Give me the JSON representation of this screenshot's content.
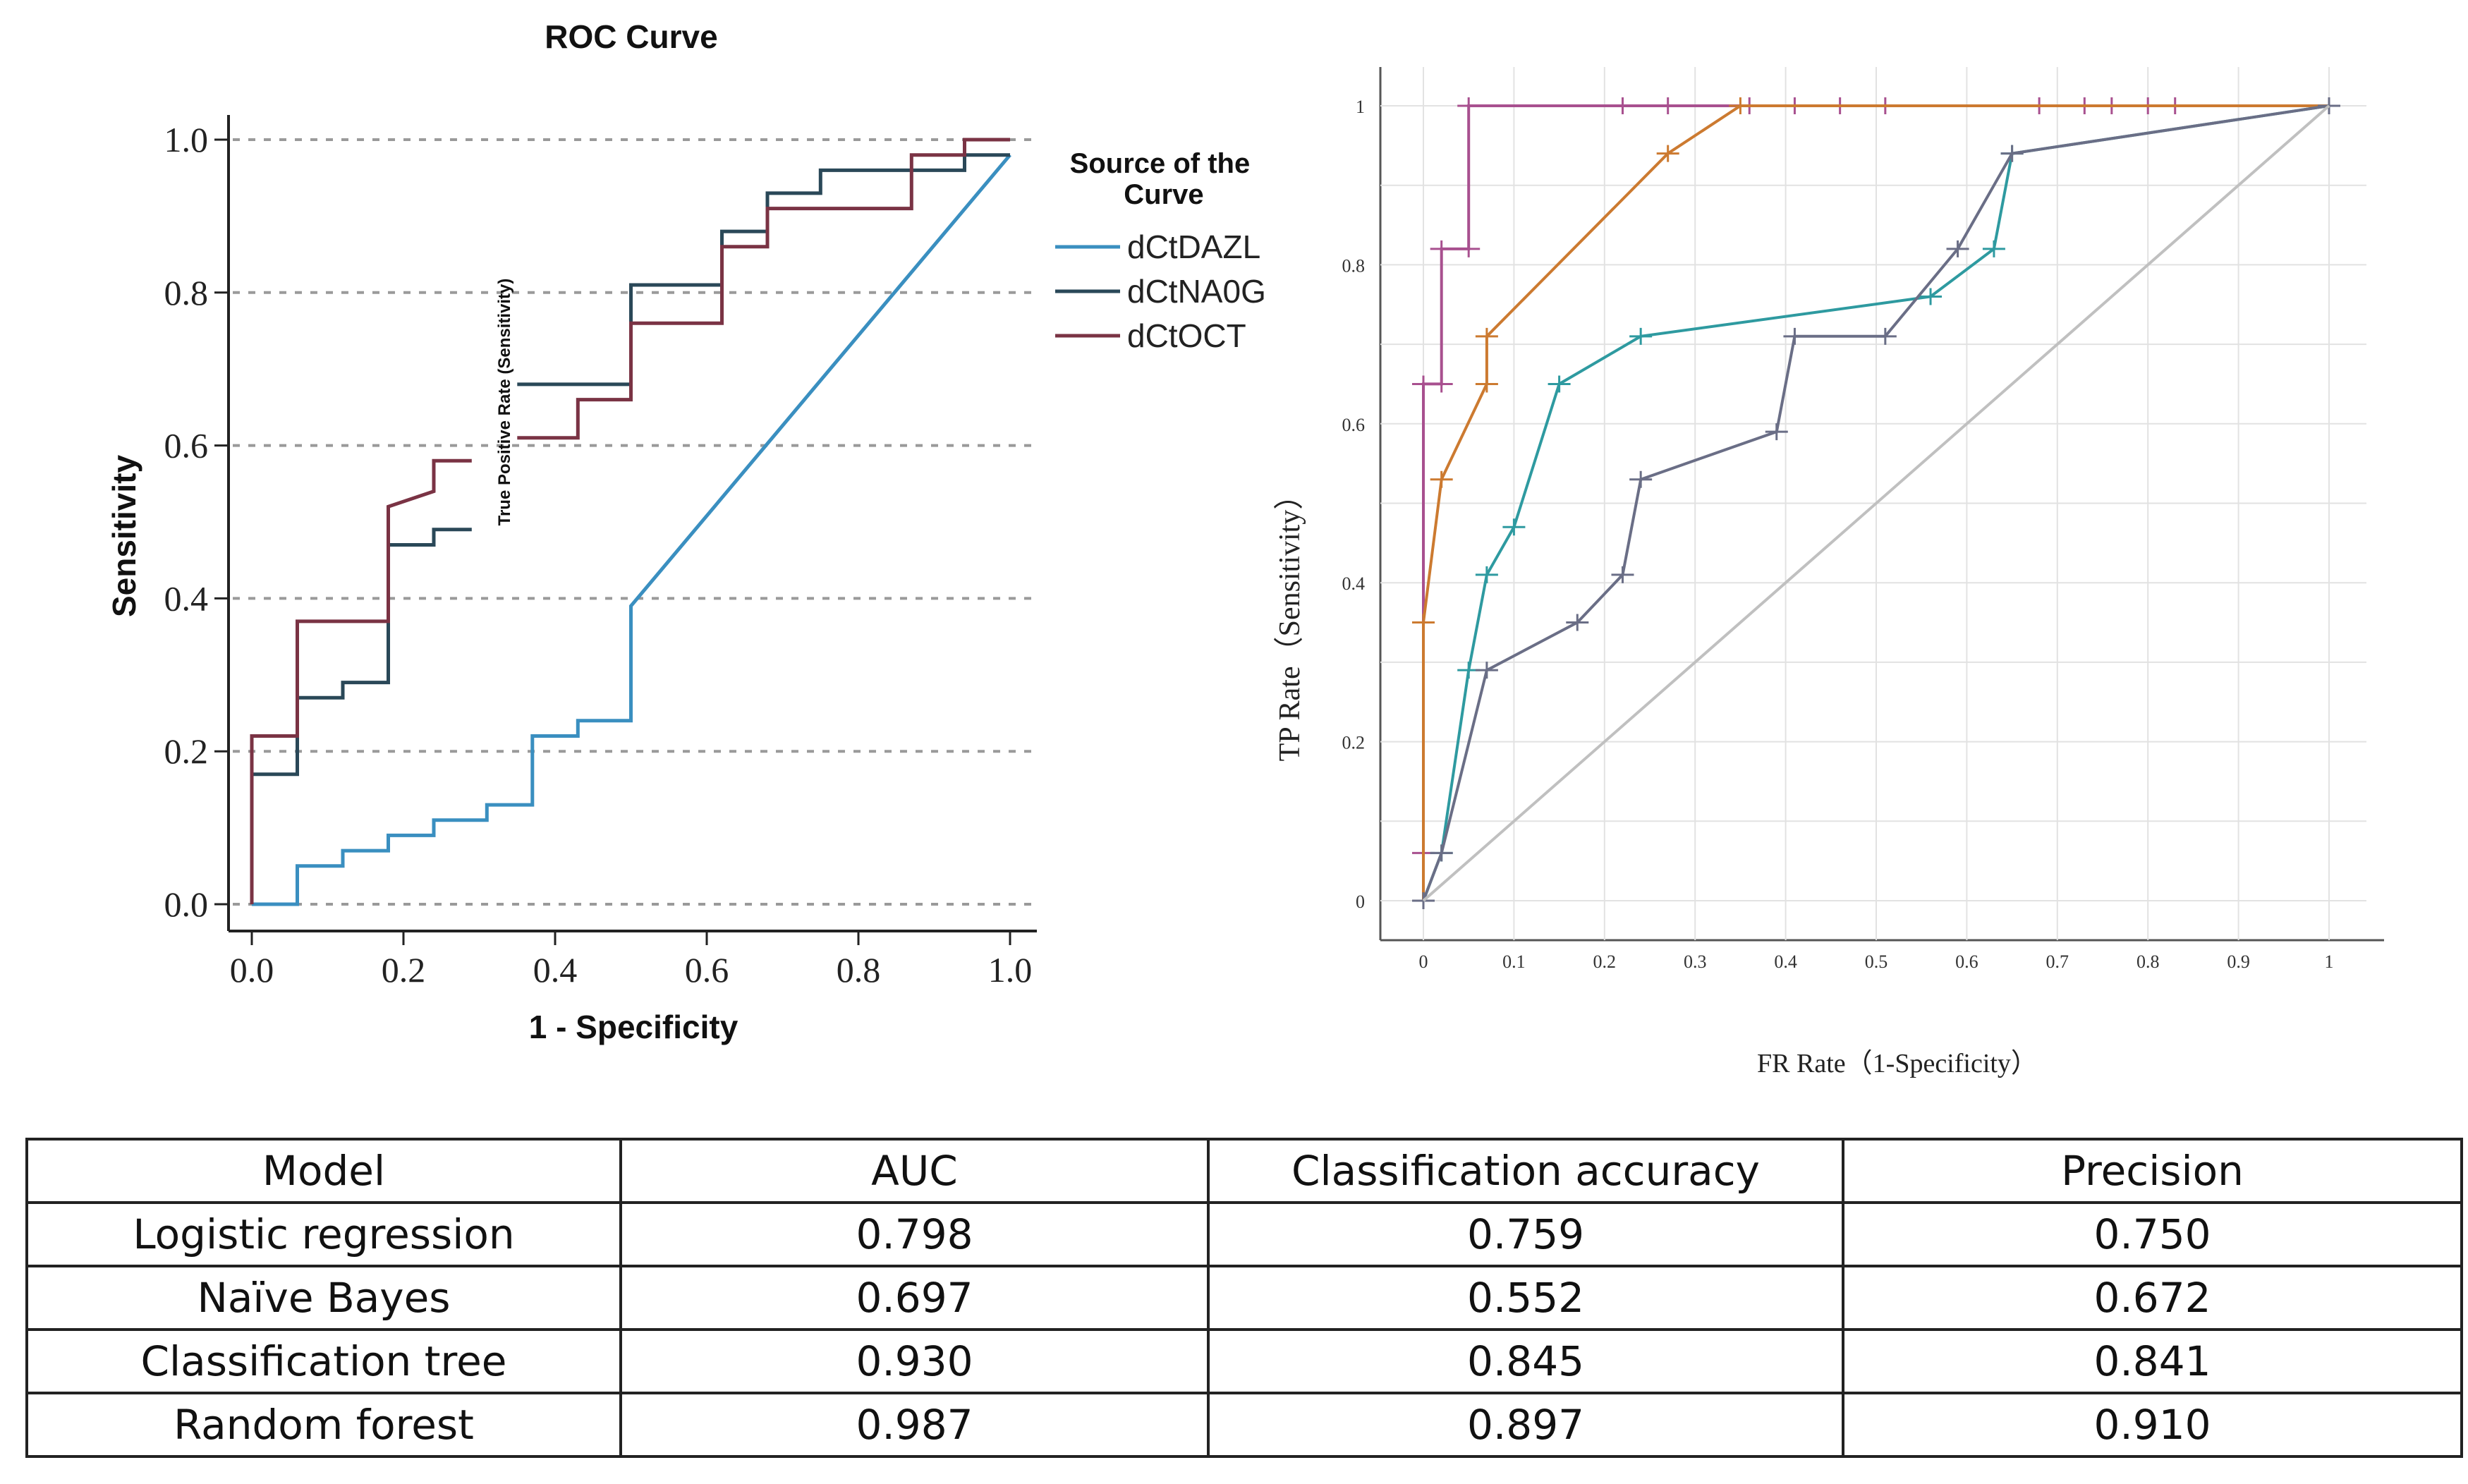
{
  "chart_data": [
    {
      "type": "line",
      "subtype": "roc-step",
      "title": "ROC Curve",
      "xlabel": "1 - Specificity",
      "ylabel": "Sensitivity",
      "inner_label": "True Positive Rate (Sensitivity)",
      "xlim": [
        0,
        1
      ],
      "ylim": [
        0,
        1
      ],
      "x_ticks": [
        "0.0",
        "0.2",
        "0.4",
        "0.6",
        "0.8",
        "1.0"
      ],
      "y_ticks": [
        "0.0",
        "0.2",
        "0.4",
        "0.6",
        "0.8",
        "1.0"
      ],
      "grid": "horizontal dashed",
      "legend_title": "Source of the Curve",
      "legend_position": "top-right outside",
      "series": [
        {
          "name": "dCtDAZL",
          "color": "#3a8fc0",
          "points": [
            [
              0,
              0
            ],
            [
              0.06,
              0
            ],
            [
              0.06,
              0.05
            ],
            [
              0.12,
              0.05
            ],
            [
              0.12,
              0.07
            ],
            [
              0.18,
              0.07
            ],
            [
              0.18,
              0.09
            ],
            [
              0.24,
              0.09
            ],
            [
              0.24,
              0.11
            ],
            [
              0.31,
              0.11
            ],
            [
              0.31,
              0.13
            ],
            [
              0.37,
              0.13
            ],
            [
              0.37,
              0.22
            ],
            [
              0.43,
              0.22
            ],
            [
              0.43,
              0.24
            ],
            [
              0.5,
              0.24
            ],
            [
              0.5,
              0.39
            ],
            [
              1,
              0.98
            ]
          ]
        },
        {
          "name": "dCtNA0G",
          "color": "#2a4858",
          "points": [
            [
              0,
              0.17
            ],
            [
              0.06,
              0.17
            ],
            [
              0.06,
              0.27
            ],
            [
              0.12,
              0.27
            ],
            [
              0.12,
              0.29
            ],
            [
              0.18,
              0.29
            ],
            [
              0.18,
              0.47
            ],
            [
              0.24,
              0.47
            ],
            [
              0.24,
              0.49
            ],
            [
              0.29,
              0.49
            ],
            null,
            [
              0.35,
              0.68
            ],
            [
              0.5,
              0.68
            ],
            [
              0.5,
              0.81
            ],
            [
              0.62,
              0.81
            ],
            [
              0.62,
              0.88
            ],
            [
              0.68,
              0.88
            ],
            [
              0.68,
              0.93
            ],
            [
              0.75,
              0.93
            ],
            [
              0.75,
              0.96
            ],
            [
              0.94,
              0.96
            ],
            [
              0.94,
              0.98
            ],
            [
              1,
              0.98
            ]
          ]
        },
        {
          "name": "dCtOCT",
          "color": "#7a3344",
          "points": [
            [
              0,
              0
            ],
            [
              0,
              0.22
            ],
            [
              0.06,
              0.22
            ],
            [
              0.06,
              0.37
            ],
            [
              0.18,
              0.37
            ],
            [
              0.18,
              0.52
            ],
            [
              0.24,
              0.54
            ],
            [
              0.24,
              0.58
            ],
            [
              0.29,
              0.58
            ],
            null,
            [
              0.35,
              0.61
            ],
            [
              0.43,
              0.61
            ],
            [
              0.43,
              0.66
            ],
            [
              0.5,
              0.66
            ],
            [
              0.5,
              0.76
            ],
            [
              0.62,
              0.76
            ],
            [
              0.62,
              0.86
            ],
            [
              0.68,
              0.86
            ],
            [
              0.68,
              0.91
            ],
            [
              0.87,
              0.91
            ],
            [
              0.87,
              0.98
            ],
            [
              0.94,
              0.98
            ],
            [
              0.94,
              1
            ],
            [
              1,
              1
            ]
          ]
        }
      ]
    },
    {
      "type": "line",
      "subtype": "roc-markers",
      "title": "",
      "xlabel": "FR Rate（1-Specificity）",
      "ylabel": "TP Rate（Sensitivity）",
      "xlim": [
        0,
        1
      ],
      "ylim": [
        0,
        1
      ],
      "x_ticks": [
        "0",
        "0.1",
        "0.2",
        "0.3",
        "0.4",
        "0.5",
        "0.6",
        "0.7",
        "0.8",
        "0.9",
        "1"
      ],
      "y_ticks": [
        "0",
        "0.2",
        "0.4",
        "0.6",
        "0.8",
        "1"
      ],
      "grid": true,
      "series": [
        {
          "name": "purple",
          "color": "#a8508f",
          "points": [
            [
              0,
              0.06
            ],
            [
              0,
              0.65
            ],
            [
              0.02,
              0.65
            ],
            [
              0.02,
              0.82
            ],
            [
              0.05,
              0.82
            ],
            [
              0.05,
              1
            ],
            [
              0.22,
              1
            ],
            [
              0.27,
              1
            ],
            [
              0.36,
              1
            ],
            [
              0.41,
              1
            ],
            [
              0.46,
              1
            ],
            [
              0.51,
              1
            ],
            [
              0.68,
              1
            ],
            [
              0.73,
              1
            ],
            [
              0.76,
              1
            ],
            [
              0.8,
              1
            ],
            [
              0.83,
              1
            ],
            [
              1,
              1
            ]
          ]
        },
        {
          "name": "orange",
          "color": "#cc7a30",
          "points": [
            [
              0,
              0
            ],
            [
              0,
              0.35
            ],
            [
              0.02,
              0.53
            ],
            [
              0.07,
              0.65
            ],
            [
              0.07,
              0.71
            ],
            [
              0.27,
              0.94
            ],
            [
              0.35,
              1
            ],
            [
              1,
              1
            ]
          ]
        },
        {
          "name": "teal",
          "color": "#2e9aa0",
          "points": [
            [
              0,
              0
            ],
            [
              0.02,
              0.06
            ],
            [
              0.05,
              0.29
            ],
            [
              0.07,
              0.41
            ],
            [
              0.1,
              0.47
            ],
            [
              0.15,
              0.65
            ],
            [
              0.24,
              0.71
            ],
            [
              0.56,
              0.76
            ],
            [
              0.63,
              0.82
            ],
            [
              0.65,
              0.94
            ],
            [
              1,
              1
            ]
          ]
        },
        {
          "name": "slate",
          "color": "#6a6e86",
          "points": [
            [
              0,
              0
            ],
            [
              0.02,
              0.06
            ],
            [
              0.07,
              0.29
            ],
            [
              0.17,
              0.35
            ],
            [
              0.22,
              0.41
            ],
            [
              0.24,
              0.53
            ],
            [
              0.39,
              0.59
            ],
            [
              0.41,
              0.71
            ],
            [
              0.51,
              0.71
            ],
            [
              0.59,
              0.82
            ],
            [
              0.65,
              0.94
            ],
            [
              1,
              1
            ]
          ]
        },
        {
          "name": "diagonal",
          "color": "#c0c0c0",
          "points": [
            [
              0,
              0
            ],
            [
              1,
              1
            ]
          ]
        }
      ]
    },
    {
      "type": "table",
      "columns": [
        "Model",
        "AUC",
        "Classification accuracy",
        "Precision"
      ],
      "rows": [
        [
          "Logistic regression",
          "0.798",
          "0.759",
          "0.750"
        ],
        [
          "Naïve Bayes",
          "0.697",
          "0.552",
          "0.672"
        ],
        [
          "Classification tree",
          "0.930",
          "0.845",
          "0.841"
        ],
        [
          "Random forest",
          "0.987",
          "0.897",
          "0.910"
        ]
      ]
    }
  ]
}
